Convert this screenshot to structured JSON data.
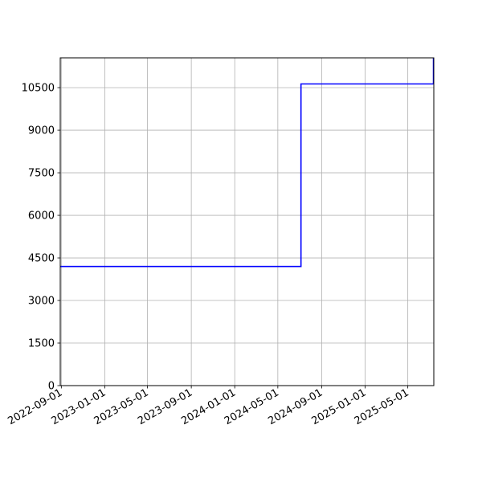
{
  "chart_data": {
    "type": "line",
    "title": "",
    "xlabel": "",
    "ylabel": "",
    "x_tick_labels": [
      "2022-09-01",
      "2023-01-01",
      "2023-05-01",
      "2023-09-01",
      "2024-01-01",
      "2024-05-01",
      "2024-09-01",
      "2025-01-01",
      "2025-05-01"
    ],
    "y_tick_labels": [
      "0",
      "1500",
      "3000",
      "4500",
      "6000",
      "7500",
      "9000",
      "10500"
    ],
    "xlim": [
      "2022-08-29",
      "2025-07-13"
    ],
    "ylim": [
      0,
      11550
    ],
    "grid": true,
    "line_color": "#0000ff",
    "series": [
      {
        "x": [
          "2022-08-29",
          "2024-07-05",
          "2024-07-05",
          "2025-07-12",
          "2025-07-12"
        ],
        "y": [
          4200,
          4200,
          10630,
          10630,
          11550
        ]
      }
    ]
  }
}
